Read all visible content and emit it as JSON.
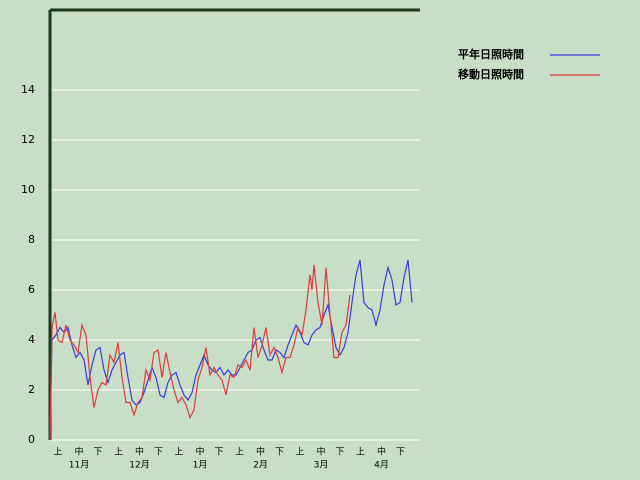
{
  "chart_data": {
    "type": "line",
    "ylim": [
      0,
      17.2
    ],
    "yticks": [
      0,
      2,
      4,
      6,
      8,
      10,
      12,
      14
    ],
    "grid": true,
    "xlim": [
      0,
      185
    ],
    "xticks": [
      {
        "value": 4,
        "label": "上"
      },
      {
        "value": 14.5,
        "label": "中"
      },
      {
        "value": 24,
        "label": "下"
      },
      {
        "value": 34.25,
        "label": "上"
      },
      {
        "value": 44.75,
        "label": "中"
      },
      {
        "value": 54.25,
        "label": "下"
      },
      {
        "value": 64.5,
        "label": "上"
      },
      {
        "value": 75,
        "label": "中"
      },
      {
        "value": 84.5,
        "label": "下"
      },
      {
        "value": 94.75,
        "label": "上"
      },
      {
        "value": 105.25,
        "label": "中"
      },
      {
        "value": 114.75,
        "label": "下"
      },
      {
        "value": 125,
        "label": "上"
      },
      {
        "value": 135.5,
        "label": "中"
      },
      {
        "value": 145,
        "label": "下"
      },
      {
        "value": 155.25,
        "label": "上"
      },
      {
        "value": 165.75,
        "label": "中"
      },
      {
        "value": 175.25,
        "label": "下"
      }
    ],
    "month_labels": [
      {
        "value": 14.5,
        "label": "11月"
      },
      {
        "value": 44.75,
        "label": "12月"
      },
      {
        "value": 75,
        "label": "1月"
      },
      {
        "value": 105.25,
        "label": "2月"
      },
      {
        "value": 135.5,
        "label": "3月"
      },
      {
        "value": 165.75,
        "label": "4月"
      }
    ],
    "legend": "right",
    "series": [
      {
        "name": "平年日照時間",
        "color": "#3a3ae0",
        "x": [
          0,
          1,
          3,
          5,
          7,
          9,
          11,
          13,
          15,
          17,
          19,
          21,
          23,
          25,
          27,
          29,
          31,
          33,
          35,
          37,
          39,
          41,
          43,
          45,
          47,
          49,
          51,
          53,
          55,
          57,
          59,
          61,
          63,
          65,
          67,
          69,
          71,
          73,
          75,
          77,
          79,
          81,
          83,
          85,
          87,
          89,
          91,
          93,
          95,
          97,
          99,
          101,
          103,
          105,
          107,
          109,
          111,
          113,
          115,
          117,
          119,
          121,
          123,
          125,
          127,
          129,
          131,
          133,
          135,
          137,
          139,
          141,
          143,
          145,
          147,
          149,
          151,
          153,
          155,
          157,
          159,
          161,
          163,
          165,
          167,
          169,
          171,
          173,
          175,
          177,
          179,
          181
        ],
        "values": [
          0,
          4.0,
          4.2,
          4.5,
          4.3,
          4.5,
          3.8,
          3.3,
          3.5,
          3.2,
          2.2,
          3.0,
          3.6,
          3.7,
          2.8,
          2.3,
          2.8,
          3.1,
          3.4,
          3.5,
          2.5,
          1.6,
          1.4,
          1.5,
          1.9,
          2.4,
          2.9,
          2.5,
          1.8,
          1.7,
          2.3,
          2.6,
          2.7,
          2.2,
          1.8,
          1.6,
          1.9,
          2.6,
          3.0,
          3.4,
          3.0,
          2.8,
          2.7,
          2.9,
          2.6,
          2.8,
          2.6,
          2.6,
          2.9,
          3.2,
          3.5,
          3.6,
          4.0,
          4.1,
          3.6,
          3.2,
          3.2,
          3.6,
          3.5,
          3.3,
          3.8,
          4.2,
          4.6,
          4.3,
          3.9,
          3.8,
          4.2,
          4.4,
          4.5,
          5.0,
          5.4,
          4.5,
          3.7,
          3.4,
          3.7,
          4.3,
          5.5,
          6.6,
          7.2,
          5.5,
          5.3,
          5.2,
          4.6,
          5.2,
          6.2,
          6.9,
          6.4,
          5.4,
          5.5,
          6.5,
          7.2,
          5.5
        ]
      },
      {
        "name": "移動日照時間",
        "color": "#e03a3a",
        "x": [
          0,
          1,
          2.5,
          4,
          6,
          8,
          10,
          12,
          14,
          16,
          18,
          20,
          22,
          24,
          26,
          28,
          30,
          32,
          34,
          36,
          38,
          40,
          42,
          44,
          46,
          48,
          50,
          52,
          54,
          56,
          58,
          60,
          62,
          64,
          66,
          68,
          70,
          72,
          74,
          76,
          78,
          80,
          82,
          84,
          86,
          88,
          90,
          92,
          94,
          96,
          98,
          100,
          102,
          104,
          106,
          108,
          110,
          112,
          114,
          116,
          118,
          120,
          122,
          124,
          126,
          128,
          130,
          131,
          132,
          134,
          136,
          138,
          140,
          142,
          144,
          146,
          148,
          150
        ],
        "values": [
          0,
          4.5,
          5.1,
          4.0,
          3.9,
          4.6,
          4.0,
          3.8,
          3.5,
          4.6,
          4.2,
          2.5,
          1.3,
          2.0,
          2.3,
          2.2,
          3.4,
          3.1,
          3.9,
          2.5,
          1.5,
          1.5,
          1.0,
          1.5,
          1.7,
          2.8,
          2.4,
          3.5,
          3.6,
          2.5,
          3.5,
          2.7,
          2.0,
          1.5,
          1.7,
          1.4,
          0.9,
          1.2,
          2.4,
          2.9,
          3.7,
          2.6,
          2.9,
          2.6,
          2.4,
          1.8,
          2.6,
          2.5,
          3.0,
          2.9,
          3.2,
          2.8,
          4.5,
          3.3,
          3.8,
          4.5,
          3.4,
          3.7,
          3.3,
          2.7,
          3.3,
          3.3,
          3.8,
          4.5,
          4.2,
          5.2,
          6.6,
          6.0,
          7.0,
          5.5,
          4.6,
          6.9,
          5.0,
          3.3,
          3.3,
          4.3,
          4.6,
          5.8
        ]
      }
    ]
  }
}
